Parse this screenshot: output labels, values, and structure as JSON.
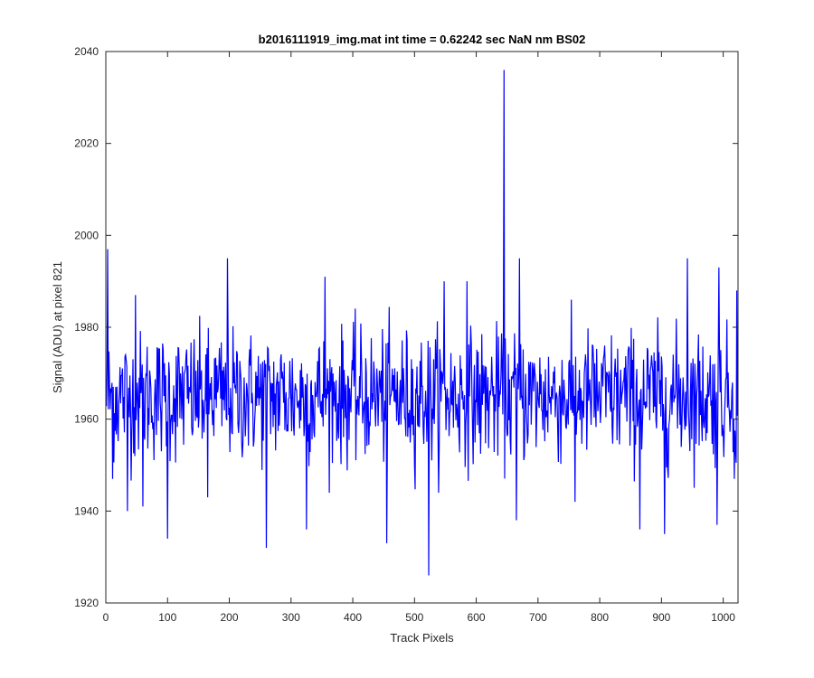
{
  "chart_data": {
    "type": "line",
    "title": "b2016111919_img.mat int time = 0.62242 sec  NaN nm BS02",
    "xlabel": "Track Pixels",
    "ylabel": "Signal (ADU) at pixel 821",
    "xlim": [
      0,
      1024
    ],
    "ylim": [
      1920,
      2040
    ],
    "xticks": [
      0,
      100,
      200,
      300,
      400,
      500,
      600,
      700,
      800,
      900,
      1000
    ],
    "yticks": [
      1920,
      1940,
      1960,
      1980,
      2000,
      2020,
      2040
    ],
    "grid": false,
    "color": "#0000ff",
    "series": [
      {
        "name": "",
        "color": "#0000ff",
        "baseline": 1965,
        "noise_amplitude": 7,
        "x_start": 1,
        "x_end": 1024,
        "peaks": [
          {
            "x": 3,
            "y": 1997
          },
          {
            "x": 11,
            "y": 1947
          },
          {
            "x": 35,
            "y": 1940
          },
          {
            "x": 48,
            "y": 1987
          },
          {
            "x": 60,
            "y": 1941
          },
          {
            "x": 100,
            "y": 1934
          },
          {
            "x": 165,
            "y": 1943
          },
          {
            "x": 197,
            "y": 1995
          },
          {
            "x": 260,
            "y": 1932
          },
          {
            "x": 325,
            "y": 1936
          },
          {
            "x": 355,
            "y": 1991
          },
          {
            "x": 455,
            "y": 1933
          },
          {
            "x": 523,
            "y": 1926
          },
          {
            "x": 548,
            "y": 1990
          },
          {
            "x": 585,
            "y": 1990
          },
          {
            "x": 645,
            "y": 2036
          },
          {
            "x": 665,
            "y": 1938
          },
          {
            "x": 670,
            "y": 1995
          },
          {
            "x": 760,
            "y": 1942
          },
          {
            "x": 865,
            "y": 1936
          },
          {
            "x": 905,
            "y": 1935
          },
          {
            "x": 942,
            "y": 1995
          },
          {
            "x": 990,
            "y": 1937
          },
          {
            "x": 993,
            "y": 1993
          },
          {
            "x": 1018,
            "y": 1947
          },
          {
            "x": 1022,
            "y": 1988
          }
        ]
      }
    ]
  }
}
